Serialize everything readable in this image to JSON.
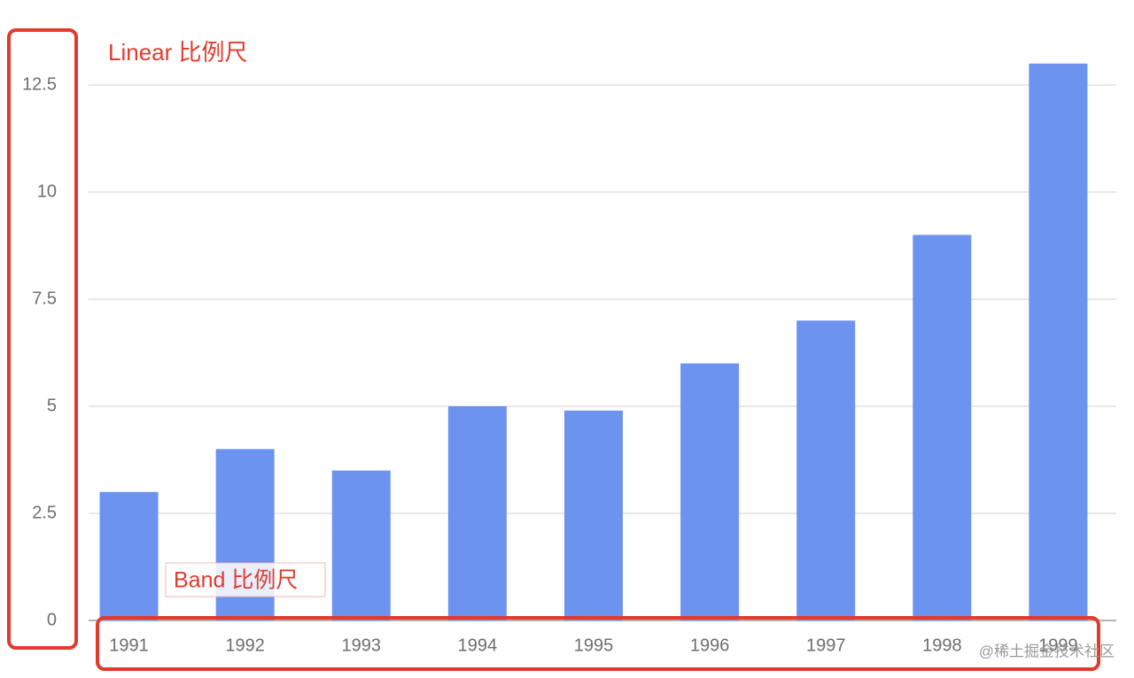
{
  "chart_data": {
    "type": "bar",
    "categories": [
      "1991",
      "1992",
      "1993",
      "1994",
      "1995",
      "1996",
      "1997",
      "1998",
      "1999"
    ],
    "values": [
      3,
      4,
      3.5,
      5,
      4.9,
      6,
      7,
      9,
      13
    ],
    "color": "#6c93f0",
    "ylim": [
      0,
      13
    ],
    "yticks": [
      0,
      2.5,
      5,
      7.5,
      10,
      12.5
    ],
    "grid": true,
    "annotations": [
      "Linear 比例尺",
      "Band 比例尺"
    ],
    "watermark": "@稀土掘金技术社区"
  }
}
